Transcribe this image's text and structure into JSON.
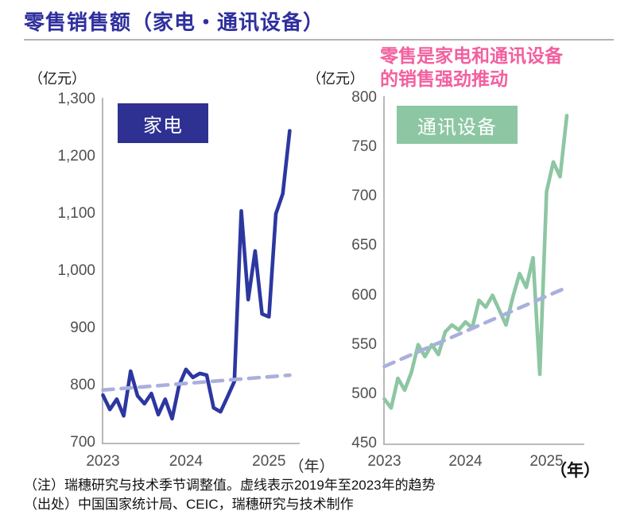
{
  "page": {
    "title": "零售销售额（家电・通讯设备）",
    "annotation": {
      "line1": "零售是家电和通讯设备",
      "line2": "的销售强劲推动",
      "color": "#f2609f"
    },
    "footnotes": [
      "（注）瑞穗研究与技术季节调整值。虚线表示2019年至2023年的趋势",
      "（出处）中国国家统计局、CEIC，瑞穗研究与技术制作"
    ]
  },
  "colors": {
    "title_blue": "#2f2f9e",
    "axis_line": "#a6a6a6",
    "tick_text": "#4f4f4f",
    "trend_dash": "#a9b0dd",
    "appliances_blue": "#2d37a0",
    "appliances_box": "#2e3192",
    "comms_green": "#8dc6a3",
    "annotation_pink": "#f2609f"
  },
  "chart_data": [
    {
      "type": "line",
      "title": "家电",
      "unit": "（亿元）",
      "frequency": "monthly",
      "x_start": "2023-01",
      "x_end": "2025-04",
      "x_ticks": [
        "2023",
        "2024",
        "2025"
      ],
      "x_axis_suffix": "（年）",
      "ylim": [
        700,
        1300
      ],
      "ytick_step": 100,
      "y_tick_labels": [
        "1,300",
        "1,200",
        "1,100",
        "1,000",
        "900",
        "800",
        "700"
      ],
      "grid": false,
      "legend_position": "inside-top-left",
      "series": [
        {
          "name": "家电",
          "color": "#2d37a0",
          "values": [
            783,
            758,
            776,
            747,
            825,
            782,
            768,
            786,
            749,
            776,
            742,
            800,
            828,
            814,
            821,
            818,
            761,
            754,
            780,
            807,
            1105,
            950,
            1035,
            925,
            920,
            1100,
            1135,
            1245
          ]
        }
      ],
      "trend": {
        "style": "dashed",
        "color": "#a9b0dd",
        "start": 792,
        "end": 818
      }
    },
    {
      "type": "line",
      "title": "通讯设备",
      "unit": "（亿元）",
      "frequency": "monthly",
      "x_start": "2023-01",
      "x_end": "2025-04",
      "x_ticks": [
        "2023",
        "2024",
        "2025"
      ],
      "x_axis_suffix": "（年）",
      "ylim": [
        450,
        800
      ],
      "ytick_step": 50,
      "y_tick_labels": [
        "800",
        "750",
        "700",
        "650",
        "600",
        "550",
        "500",
        "450"
      ],
      "grid": false,
      "legend_position": "inside-top-left",
      "series": [
        {
          "name": "通讯设备",
          "color": "#8dc6a3",
          "values": [
            495,
            486,
            516,
            504,
            522,
            550,
            538,
            550,
            540,
            563,
            570,
            565,
            573,
            567,
            595,
            588,
            600,
            585,
            570,
            598,
            622,
            608,
            638,
            520,
            705,
            735,
            720,
            782
          ]
        }
      ],
      "trend": {
        "style": "dashed",
        "color": "#a9b0dd",
        "start": 528,
        "end": 608
      }
    }
  ]
}
